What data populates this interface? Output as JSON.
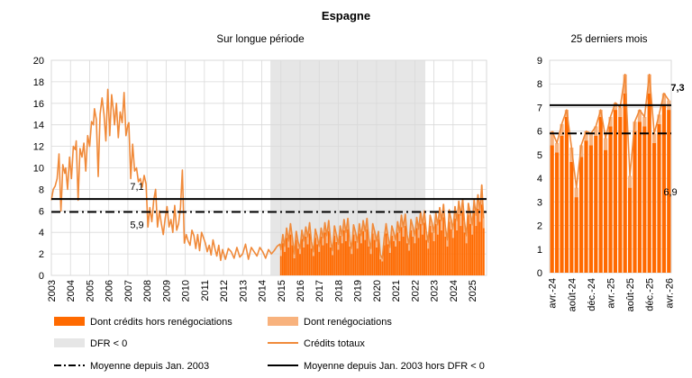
{
  "title": "Espagne",
  "colors": {
    "bar_main": "#ff6a00",
    "bar_reneg": "#f8b27d",
    "line_total": "#f08a3a",
    "dfr_shade": "#e6e6e6",
    "grid": "#d9d9d9",
    "axis": "#7f7f7f",
    "avg_lines": "#000000"
  },
  "legend": [
    {
      "label": "Dont crédits hors renégociations",
      "kind": "bar_main"
    },
    {
      "label": "Dont renégociations",
      "kind": "bar_reneg"
    },
    {
      "label": "DFR < 0",
      "kind": "dfr_shade"
    },
    {
      "label": "Crédits totaux",
      "kind": "line_total"
    },
    {
      "label": "Moyenne depuis Jan. 2003",
      "kind": "dashdot"
    },
    {
      "label": "Moyenne depuis Jan. 2003 hors DFR < 0",
      "kind": "solid"
    }
  ],
  "chart_data": [
    {
      "type": "bar",
      "subtitle": "Sur longue période",
      "ylim": [
        0,
        20
      ],
      "yticks": [
        "0",
        "2",
        "4",
        "6",
        "8",
        "10",
        "12",
        "14",
        "16",
        "18",
        "20"
      ],
      "xticks": [
        "2003",
        "2004",
        "2005",
        "2006",
        "2007",
        "2008",
        "2009",
        "2010",
        "2011",
        "2012",
        "2013",
        "2014",
        "2015",
        "2016",
        "2017",
        "2018",
        "2019",
        "2020",
        "2021",
        "2022",
        "2023",
        "2024",
        "2025"
      ],
      "x_range": [
        2003.0,
        2025.75
      ],
      "dfr_shade_range": [
        2014.45,
        2022.55
      ],
      "bars_start": 2014.9,
      "hlines": [
        {
          "name": "Moyenne depuis Jan. 2003",
          "value": 5.9,
          "style": "dashdot",
          "label": "5,9"
        },
        {
          "name": "Moyenne depuis Jan. 2003 hors DFR < 0",
          "value": 7.1,
          "style": "solid",
          "label": "7,1"
        }
      ],
      "series": [
        {
          "name": "Crédits totaux",
          "kind": "line",
          "x": [
            2003.0,
            2003.1,
            2003.2,
            2003.3,
            2003.4,
            2003.5,
            2003.55,
            2003.6,
            2003.7,
            2003.75,
            2003.85,
            2003.95,
            2004.05,
            2004.15,
            2004.25,
            2004.3,
            2004.4,
            2004.5,
            2004.6,
            2004.7,
            2004.8,
            2004.9,
            2005.0,
            2005.1,
            2005.2,
            2005.25,
            2005.35,
            2005.45,
            2005.55,
            2005.65,
            2005.75,
            2005.85,
            2005.95,
            2006.05,
            2006.15,
            2006.25,
            2006.3,
            2006.4,
            2006.5,
            2006.6,
            2006.7,
            2006.8,
            2006.9,
            2007.0,
            2007.05,
            2007.15,
            2007.25,
            2007.35,
            2007.45,
            2007.55,
            2007.65,
            2007.75,
            2007.85,
            2007.95,
            2008.05,
            2008.15,
            2008.25,
            2008.35,
            2008.45,
            2008.55,
            2008.65,
            2008.75,
            2008.85,
            2008.95,
            2009.05,
            2009.15,
            2009.25,
            2009.35,
            2009.45,
            2009.55,
            2009.65,
            2009.75,
            2009.85,
            2009.95,
            2010.05,
            2010.15,
            2010.25,
            2010.35,
            2010.45,
            2010.55,
            2010.65,
            2010.75,
            2010.85,
            2010.95,
            2011.05,
            2011.15,
            2011.25,
            2011.35,
            2011.45,
            2011.55,
            2011.65,
            2011.75,
            2011.85,
            2011.95,
            2012.1,
            2012.25,
            2012.4,
            2012.55,
            2012.7,
            2012.85,
            2013.0,
            2013.15,
            2013.3,
            2013.45,
            2013.6,
            2013.75,
            2013.9,
            2014.05,
            2014.2,
            2014.35,
            2014.5,
            2014.65,
            2014.8,
            2014.95
          ],
          "values": [
            7.0,
            8.0,
            8.3,
            9.0,
            11.3,
            6.0,
            8.0,
            10.3,
            9.5,
            10.0,
            8.0,
            11.0,
            9.0,
            12.0,
            11.7,
            12.5,
            7.0,
            11.8,
            11.0,
            12.3,
            9.7,
            13.0,
            12.0,
            14.3,
            14.0,
            15.5,
            14.5,
            9.2,
            15.0,
            16.5,
            15.0,
            12.5,
            17.3,
            13.0,
            16.8,
            15.2,
            14.0,
            16.0,
            12.8,
            15.2,
            14.2,
            17.0,
            13.0,
            14.0,
            14.2,
            9.0,
            12.2,
            9.7,
            10.0,
            8.7,
            9.0,
            8.2,
            9.3,
            8.5,
            4.5,
            6.3,
            5.0,
            7.0,
            8.0,
            4.5,
            6.0,
            4.8,
            3.8,
            5.3,
            6.4,
            4.5,
            5.2,
            4.0,
            6.5,
            4.2,
            4.8,
            6.3,
            9.8,
            3.0,
            3.8,
            3.2,
            2.8,
            4.2,
            3.7,
            2.5,
            3.8,
            2.3,
            4.0,
            3.5,
            3.0,
            2.2,
            2.8,
            1.9,
            3.3,
            2.5,
            1.8,
            2.8,
            1.4,
            2.4,
            1.5,
            2.5,
            2.2,
            1.6,
            2.6,
            1.7,
            2.0,
            2.9,
            1.5,
            2.6,
            2.2,
            1.8,
            2.6,
            2.2,
            1.6,
            2.4,
            2.0,
            2.3,
            2.7,
            2.9
          ]
        },
        {
          "name": "Dont crédits hors renégociations",
          "kind": "bars",
          "x": [
            2015.0,
            2015.1,
            2015.2,
            2015.3,
            2015.4,
            2015.5,
            2015.6,
            2015.7,
            2015.8,
            2015.9,
            2016.0,
            2016.1,
            2016.2,
            2016.3,
            2016.4,
            2016.5,
            2016.6,
            2016.7,
            2016.8,
            2016.9,
            2017.0,
            2017.1,
            2017.2,
            2017.3,
            2017.4,
            2017.5,
            2017.6,
            2017.7,
            2017.8,
            2017.9,
            2018.0,
            2018.1,
            2018.2,
            2018.3,
            2018.4,
            2018.5,
            2018.6,
            2018.7,
            2018.8,
            2018.9,
            2019.0,
            2019.1,
            2019.2,
            2019.3,
            2019.4,
            2019.5,
            2019.6,
            2019.7,
            2019.8,
            2019.9,
            2020.0,
            2020.1,
            2020.2,
            2020.3,
            2020.4,
            2020.5,
            2020.6,
            2020.7,
            2020.8,
            2020.9,
            2021.0,
            2021.1,
            2021.2,
            2021.3,
            2021.4,
            2021.5,
            2021.6,
            2021.7,
            2021.8,
            2021.9,
            2022.0,
            2022.1,
            2022.2,
            2022.3,
            2022.4,
            2022.5,
            2022.6,
            2022.7,
            2022.8,
            2022.9,
            2023.0,
            2023.1,
            2023.2,
            2023.3,
            2023.4,
            2023.5,
            2023.6,
            2023.7,
            2023.8,
            2023.9,
            2024.0,
            2024.1,
            2024.2,
            2024.3,
            2024.4,
            2024.5,
            2024.6,
            2024.7,
            2024.8,
            2024.9,
            2025.0,
            2025.1,
            2025.2,
            2025.3,
            2025.4,
            2025.5,
            2025.6
          ],
          "values": [
            1.8,
            3.0,
            2.2,
            3.5,
            2.6,
            3.8,
            2.8,
            1.6,
            3.3,
            2.5,
            2.0,
            3.4,
            2.6,
            3.6,
            2.9,
            3.9,
            2.5,
            1.8,
            3.5,
            2.9,
            2.2,
            3.6,
            2.8,
            4.0,
            3.0,
            4.1,
            2.6,
            1.9,
            3.7,
            3.1,
            2.4,
            3.7,
            3.0,
            4.2,
            3.2,
            4.3,
            2.7,
            2.0,
            3.8,
            3.2,
            2.5,
            3.9,
            3.0,
            4.1,
            3.3,
            4.3,
            2.7,
            2.0,
            3.9,
            3.3,
            2.6,
            3.4,
            1.5,
            1.3,
            2.8,
            3.9,
            2.9,
            2.1,
            3.7,
            3.2,
            2.7,
            4.0,
            3.2,
            4.5,
            3.6,
            4.6,
            3.0,
            2.3,
            4.2,
            3.6,
            3.0,
            4.4,
            3.5,
            4.8,
            3.8,
            4.9,
            3.3,
            2.5,
            4.6,
            4.0,
            3.2,
            4.8,
            3.8,
            5.2,
            4.2,
            5.4,
            3.6,
            2.7,
            5.0,
            4.3,
            3.5,
            5.3,
            4.2,
            5.7,
            4.6,
            5.9,
            4.0,
            3.0,
            5.6,
            4.8,
            3.8,
            5.8,
            4.6,
            6.2,
            5.0,
            6.6,
            4.4
          ]
        },
        {
          "name": "Dont renégociations",
          "kind": "bars",
          "values": [
            0.6,
            0.8,
            0.5,
            0.9,
            0.6,
            1.0,
            0.7,
            0.4,
            0.8,
            0.6,
            0.5,
            0.8,
            0.6,
            0.9,
            0.7,
            1.0,
            0.6,
            0.4,
            0.8,
            0.7,
            0.5,
            0.8,
            0.7,
            0.9,
            0.7,
            1.0,
            0.6,
            0.4,
            0.9,
            0.7,
            0.5,
            0.9,
            0.7,
            1.0,
            0.8,
            1.0,
            0.6,
            0.5,
            0.9,
            0.8,
            0.6,
            0.9,
            0.7,
            1.0,
            0.8,
            1.0,
            0.7,
            0.5,
            0.9,
            0.8,
            0.6,
            0.7,
            0.4,
            0.3,
            0.7,
            0.9,
            0.7,
            0.5,
            0.9,
            0.8,
            0.6,
            1.0,
            0.8,
            1.1,
            0.9,
            1.1,
            0.7,
            0.6,
            1.0,
            0.9,
            0.7,
            1.0,
            0.8,
            1.1,
            0.9,
            1.1,
            0.8,
            0.6,
            1.0,
            0.9,
            0.8,
            1.0,
            0.9,
            1.1,
            0.9,
            1.2,
            0.8,
            0.6,
            1.1,
            0.9,
            0.8,
            1.1,
            0.9,
            1.2,
            1.0,
            1.2,
            0.9,
            0.7,
            1.1,
            1.0,
            0.9,
            1.2,
            1.0,
            1.3,
            1.1,
            1.8,
            0.9
          ]
        }
      ]
    },
    {
      "type": "bar",
      "subtitle": "25 derniers mois",
      "ylim": [
        0,
        9
      ],
      "yticks": [
        "0",
        "1",
        "2",
        "3",
        "4",
        "5",
        "6",
        "7",
        "8",
        "9"
      ],
      "xticks": [
        "avr.-24",
        "août-24",
        "déc.-24",
        "avr.-25",
        "août-25",
        "déc.-25",
        "avr.-26"
      ],
      "xtick_positions": [
        0,
        4,
        8,
        12,
        16,
        20,
        24
      ],
      "hlines": [
        {
          "name": "Moyenne depuis Jan. 2003",
          "value": 5.9,
          "style": "dashdot"
        },
        {
          "name": "Moyenne depuis Jan. 2003 hors DFR < 0",
          "value": 7.1,
          "style": "solid"
        }
      ],
      "annotations": [
        {
          "text": "7,3",
          "bold": true,
          "value": 7.3
        },
        {
          "text": "6,9",
          "bold": false,
          "value": 6.9
        }
      ],
      "series": [
        {
          "name": "Dont crédits hors renégociations",
          "kind": "bars",
          "values": [
            5.4,
            5.1,
            5.8,
            6.6,
            4.7,
            3.2,
            4.9,
            5.6,
            5.4,
            5.8,
            6.6,
            5.2,
            6.2,
            6.9,
            6.6,
            7.6,
            3.6,
            6.0,
            6.4,
            6.2,
            7.6,
            5.5,
            6.3,
            7.1,
            6.9
          ]
        },
        {
          "name": "Dont renégociations",
          "kind": "bars",
          "values": [
            0.6,
            0.4,
            0.5,
            0.3,
            0.6,
            0.4,
            0.5,
            0.4,
            0.5,
            0.4,
            0.3,
            0.5,
            0.4,
            0.3,
            0.4,
            0.8,
            0.5,
            0.4,
            0.5,
            0.4,
            0.8,
            0.4,
            0.4,
            0.5,
            0.4
          ]
        },
        {
          "name": "Crédits totaux",
          "kind": "line",
          "values": [
            6.0,
            5.5,
            6.3,
            6.9,
            5.3,
            3.6,
            5.4,
            6.0,
            5.9,
            6.2,
            6.9,
            5.7,
            6.6,
            7.2,
            7.0,
            8.4,
            4.1,
            6.4,
            6.9,
            6.6,
            8.4,
            5.9,
            6.7,
            7.6,
            7.3
          ]
        }
      ]
    }
  ]
}
